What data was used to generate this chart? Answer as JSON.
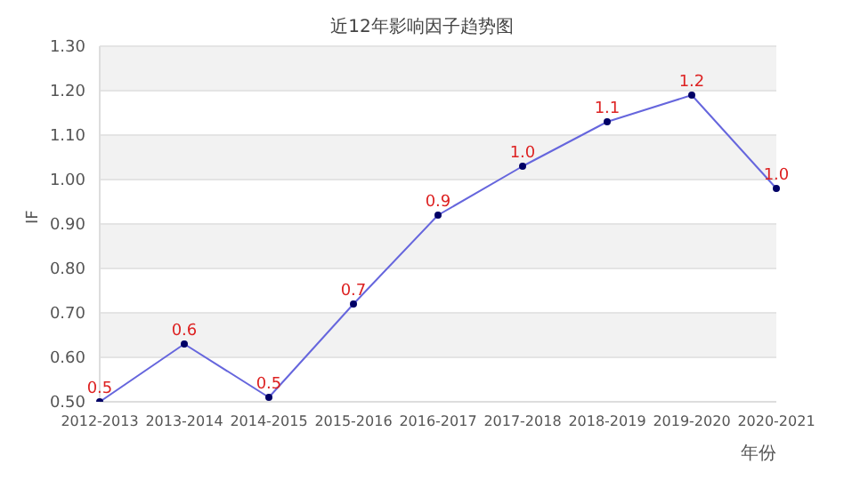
{
  "chart_data": {
    "type": "line",
    "title": "近12年影响因子趋势图",
    "xlabel": "年份",
    "ylabel": "IF",
    "categories": [
      "2012-2013",
      "2013-2014",
      "2014-2015",
      "2015-2016",
      "2016-2017",
      "2017-2018",
      "2018-2019",
      "2019-2020",
      "2020-2021"
    ],
    "series": [
      {
        "color": "#6666dd",
        "values": [
          0.5,
          0.63,
          0.51,
          0.72,
          0.92,
          1.03,
          1.13,
          1.19,
          0.98
        ],
        "value_labels": [
          "0.5",
          "0.6",
          "0.5",
          "0.7",
          "0.9",
          "1.0",
          "1.1",
          "1.2",
          "1.0"
        ]
      }
    ],
    "ylim": [
      0.5,
      1.3
    ],
    "yticks": [
      {
        "value": 0.5,
        "label": "0.50"
      },
      {
        "value": 0.6,
        "label": "0.60"
      },
      {
        "value": 0.7,
        "label": "0.70"
      },
      {
        "value": 0.8,
        "label": "0.80"
      },
      {
        "value": 0.9,
        "label": "0.90"
      },
      {
        "value": 1.0,
        "label": "1.00"
      },
      {
        "value": 1.1,
        "label": "1.10"
      },
      {
        "value": 1.2,
        "label": "1.20"
      },
      {
        "value": 1.3,
        "label": "1.30"
      }
    ],
    "grid": "y",
    "marker": "circle",
    "line_style": "solid"
  }
}
